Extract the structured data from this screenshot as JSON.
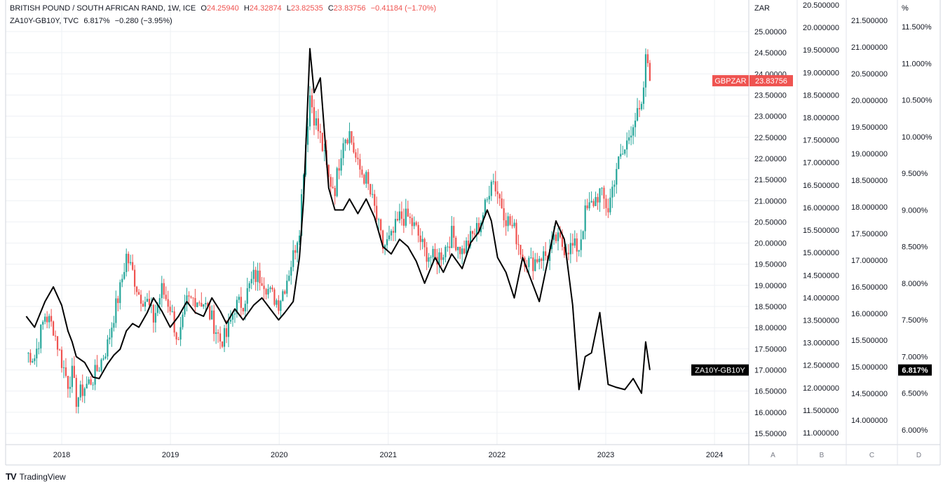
{
  "legend": {
    "main_title": "BRITISH POUND / SOUTH AFRICAN RAND, 1W, ICE",
    "o_label": "O",
    "o_value": "24.25940",
    "h_label": "H",
    "h_value": "24.32874",
    "l_label": "L",
    "l_value": "23.82535",
    "c_label": "C",
    "c_value": "23.83756",
    "change": "−0.41184 (−1.70%)",
    "secondary_title": "ZA10Y-GB10Y, TVC",
    "secondary_value": "6.817%",
    "secondary_change": "−0.280 (−3.95%)"
  },
  "branding": {
    "logo": "TV",
    "name": "TradingView"
  },
  "colors": {
    "up": "#26a69a",
    "down": "#ef5350",
    "spread_line": "#000000",
    "price_label_bg": "#ef5350",
    "spread_label_bg": "#000000",
    "grid": "#eef0f4"
  },
  "chart_data": {
    "type": "candlestick+line",
    "timeframe": "1W",
    "x_ticks": [
      "2018",
      "2019",
      "2020",
      "2021",
      "2022",
      "2023",
      "2024"
    ],
    "axes": [
      {
        "id": "A",
        "unit_label": "ZAR",
        "ticks": [
          "25.00000",
          "24.50000",
          "24.00000",
          "23.50000",
          "23.00000",
          "22.50000",
          "22.00000",
          "21.50000",
          "21.00000",
          "20.50000",
          "20.00000",
          "19.50000",
          "19.00000",
          "18.50000",
          "18.00000",
          "17.50000",
          "17.00000",
          "16.50000",
          "16.00000",
          "15.50000"
        ]
      },
      {
        "id": "B",
        "unit_label": "",
        "ticks": [
          "20.500000",
          "20.000000",
          "19.500000",
          "19.000000",
          "18.500000",
          "18.000000",
          "17.500000",
          "17.000000",
          "16.500000",
          "16.000000",
          "15.500000",
          "15.000000",
          "14.500000",
          "14.000000",
          "13.500000",
          "13.000000",
          "12.500000",
          "12.000000",
          "11.500000",
          "11.000000"
        ]
      },
      {
        "id": "C",
        "unit_label": "",
        "ticks": [
          "21.500000",
          "21.000000",
          "20.500000",
          "20.000000",
          "19.500000",
          "19.000000",
          "18.500000",
          "18.000000",
          "17.500000",
          "17.000000",
          "16.500000",
          "16.000000",
          "15.500000",
          "15.000000",
          "14.500000",
          "14.000000"
        ]
      },
      {
        "id": "D",
        "unit_label": "%",
        "ticks": [
          "11.500%",
          "11.000%",
          "10.500%",
          "10.000%",
          "9.500%",
          "9.000%",
          "8.500%",
          "8.000%",
          "7.500%",
          "7.000%",
          "6.500%",
          "6.000%"
        ]
      }
    ],
    "axis_letters": [
      "A",
      "B",
      "C",
      "D"
    ],
    "series": [
      {
        "name": "GBPZAR",
        "type": "candlestick",
        "axis": "A",
        "last_label": "23.83756",
        "points": [
          [
            "2017-09-04",
            17.4
          ],
          [
            "2017-10-02",
            17.3
          ],
          [
            "2017-11-06",
            18.3
          ],
          [
            "2017-12-04",
            18.0
          ],
          [
            "2018-01-01",
            17.2
          ],
          [
            "2018-01-22",
            16.7
          ],
          [
            "2018-02-05",
            16.9
          ],
          [
            "2018-02-19",
            16.3
          ],
          [
            "2018-03-19",
            16.6
          ],
          [
            "2018-04-16",
            16.8
          ],
          [
            "2018-05-07",
            17.1
          ],
          [
            "2018-06-04",
            17.6
          ],
          [
            "2018-06-25",
            18.3
          ],
          [
            "2018-07-16",
            18.9
          ],
          [
            "2018-08-06",
            19.7
          ],
          [
            "2018-08-27",
            19.3
          ],
          [
            "2018-09-17",
            18.8
          ],
          [
            "2018-10-15",
            18.6
          ],
          [
            "2018-11-05",
            18.2
          ],
          [
            "2018-12-03",
            18.9
          ],
          [
            "2018-12-31",
            18.5
          ],
          [
            "2019-01-28",
            17.6
          ],
          [
            "2019-02-25",
            18.6
          ],
          [
            "2019-03-25",
            18.7
          ],
          [
            "2019-04-22",
            18.6
          ],
          [
            "2019-05-20",
            18.2
          ],
          [
            "2019-06-17",
            17.7
          ],
          [
            "2019-07-08",
            17.8
          ],
          [
            "2019-08-05",
            18.5
          ],
          [
            "2019-09-02",
            18.6
          ],
          [
            "2019-10-07",
            19.2
          ],
          [
            "2019-11-04",
            19.2
          ],
          [
            "2019-12-02",
            18.8
          ],
          [
            "2019-12-30",
            18.6
          ],
          [
            "2020-01-20",
            19.0
          ],
          [
            "2020-02-17",
            19.7
          ],
          [
            "2020-03-09",
            20.4
          ],
          [
            "2020-03-23",
            21.8
          ],
          [
            "2020-04-13",
            23.5
          ],
          [
            "2020-04-27",
            23.0
          ],
          [
            "2020-05-18",
            22.5
          ],
          [
            "2020-06-15",
            21.5
          ],
          [
            "2020-07-06",
            21.3
          ],
          [
            "2020-08-03",
            22.5
          ],
          [
            "2020-08-24",
            22.6
          ],
          [
            "2020-09-21",
            21.8
          ],
          [
            "2020-10-19",
            21.5
          ],
          [
            "2020-11-16",
            20.8
          ],
          [
            "2020-12-14",
            19.9
          ],
          [
            "2021-01-11",
            20.1
          ],
          [
            "2021-02-08",
            20.6
          ],
          [
            "2021-03-08",
            20.6
          ],
          [
            "2021-04-05",
            20.3
          ],
          [
            "2021-05-03",
            19.8
          ],
          [
            "2021-06-07",
            19.6
          ],
          [
            "2021-07-05",
            19.8
          ],
          [
            "2021-08-02",
            20.2
          ],
          [
            "2021-09-06",
            19.8
          ],
          [
            "2021-10-04",
            20.1
          ],
          [
            "2021-11-01",
            20.4
          ],
          [
            "2021-11-29",
            21.0
          ],
          [
            "2021-12-13",
            21.6
          ],
          [
            "2022-01-03",
            21.2
          ],
          [
            "2022-01-31",
            20.6
          ],
          [
            "2022-02-28",
            20.3
          ],
          [
            "2022-03-28",
            19.7
          ],
          [
            "2022-04-25",
            19.5
          ],
          [
            "2022-05-23",
            19.7
          ],
          [
            "2022-06-20",
            19.7
          ],
          [
            "2022-07-18",
            20.1
          ],
          [
            "2022-08-15",
            19.9
          ],
          [
            "2022-09-12",
            19.9
          ],
          [
            "2022-10-03",
            19.9
          ],
          [
            "2022-10-24",
            20.7
          ],
          [
            "2022-11-14",
            20.9
          ],
          [
            "2022-12-12",
            21.2
          ],
          [
            "2023-01-09",
            20.8
          ],
          [
            "2023-02-06",
            21.8
          ],
          [
            "2023-03-06",
            22.2
          ],
          [
            "2023-04-03",
            22.9
          ],
          [
            "2023-05-01",
            23.1
          ],
          [
            "2023-05-15",
            24.3
          ],
          [
            "2023-05-29",
            24.2594
          ]
        ]
      },
      {
        "name": "ZA10Y-GB10Y",
        "type": "line",
        "axis": "D",
        "last_label": "ZA10Y-GB10Y",
        "last_value_label": "6.817%",
        "points": [
          [
            "2017-09-04",
            7.55
          ],
          [
            "2017-10-02",
            7.4
          ],
          [
            "2017-11-06",
            7.75
          ],
          [
            "2017-12-04",
            7.95
          ],
          [
            "2018-01-01",
            7.7
          ],
          [
            "2018-01-22",
            7.35
          ],
          [
            "2018-02-05",
            7.2
          ],
          [
            "2018-02-19",
            7.0
          ],
          [
            "2018-03-19",
            6.92
          ],
          [
            "2018-04-16",
            6.72
          ],
          [
            "2018-05-07",
            6.7
          ],
          [
            "2018-06-04",
            6.9
          ],
          [
            "2018-06-25",
            7.02
          ],
          [
            "2018-07-16",
            7.1
          ],
          [
            "2018-08-06",
            7.35
          ],
          [
            "2018-08-27",
            7.45
          ],
          [
            "2018-09-17",
            7.4
          ],
          [
            "2018-10-15",
            7.6
          ],
          [
            "2018-11-05",
            7.8
          ],
          [
            "2018-12-03",
            7.62
          ],
          [
            "2018-12-31",
            7.4
          ],
          [
            "2019-01-28",
            7.55
          ],
          [
            "2019-02-25",
            7.75
          ],
          [
            "2019-03-25",
            7.6
          ],
          [
            "2019-04-22",
            7.55
          ],
          [
            "2019-05-20",
            7.8
          ],
          [
            "2019-06-17",
            7.62
          ],
          [
            "2019-07-08",
            7.45
          ],
          [
            "2019-08-05",
            7.65
          ],
          [
            "2019-09-02",
            7.5
          ],
          [
            "2019-10-07",
            7.7
          ],
          [
            "2019-11-04",
            7.8
          ],
          [
            "2019-12-02",
            7.65
          ],
          [
            "2019-12-30",
            7.5
          ],
          [
            "2020-01-20",
            7.6
          ],
          [
            "2020-02-17",
            7.75
          ],
          [
            "2020-03-09",
            8.35
          ],
          [
            "2020-03-23",
            9.15
          ],
          [
            "2020-04-13",
            11.2
          ],
          [
            "2020-04-27",
            10.6
          ],
          [
            "2020-05-18",
            10.8
          ],
          [
            "2020-06-15",
            9.3
          ],
          [
            "2020-07-06",
            9.0
          ],
          [
            "2020-08-03",
            9.0
          ],
          [
            "2020-08-24",
            9.15
          ],
          [
            "2020-09-21",
            8.95
          ],
          [
            "2020-10-19",
            9.15
          ],
          [
            "2020-11-16",
            8.9
          ],
          [
            "2020-12-14",
            8.5
          ],
          [
            "2021-01-11",
            8.4
          ],
          [
            "2021-02-08",
            8.6
          ],
          [
            "2021-03-08",
            8.5
          ],
          [
            "2021-04-05",
            8.3
          ],
          [
            "2021-05-03",
            8.0
          ],
          [
            "2021-06-07",
            8.35
          ],
          [
            "2021-07-05",
            8.15
          ],
          [
            "2021-08-02",
            8.4
          ],
          [
            "2021-09-06",
            8.2
          ],
          [
            "2021-10-04",
            8.55
          ],
          [
            "2021-11-01",
            8.7
          ],
          [
            "2021-11-29",
            9.0
          ],
          [
            "2021-12-13",
            8.85
          ],
          [
            "2022-01-03",
            8.35
          ],
          [
            "2022-01-31",
            8.15
          ],
          [
            "2022-02-28",
            7.8
          ],
          [
            "2022-03-28",
            8.35
          ],
          [
            "2022-04-25",
            8.05
          ],
          [
            "2022-05-23",
            7.75
          ],
          [
            "2022-06-20",
            8.3
          ],
          [
            "2022-07-18",
            8.85
          ],
          [
            "2022-08-15",
            8.6
          ],
          [
            "2022-09-12",
            7.7
          ],
          [
            "2022-10-03",
            6.55
          ],
          [
            "2022-10-24",
            7.0
          ],
          [
            "2022-11-14",
            7.05
          ],
          [
            "2022-12-12",
            7.6
          ],
          [
            "2023-01-09",
            6.62
          ],
          [
            "2023-02-06",
            6.58
          ],
          [
            "2023-03-06",
            6.55
          ],
          [
            "2023-04-03",
            6.7
          ],
          [
            "2023-05-01",
            6.5
          ],
          [
            "2023-05-15",
            7.2
          ],
          [
            "2023-05-29",
            6.817
          ]
        ]
      }
    ]
  }
}
